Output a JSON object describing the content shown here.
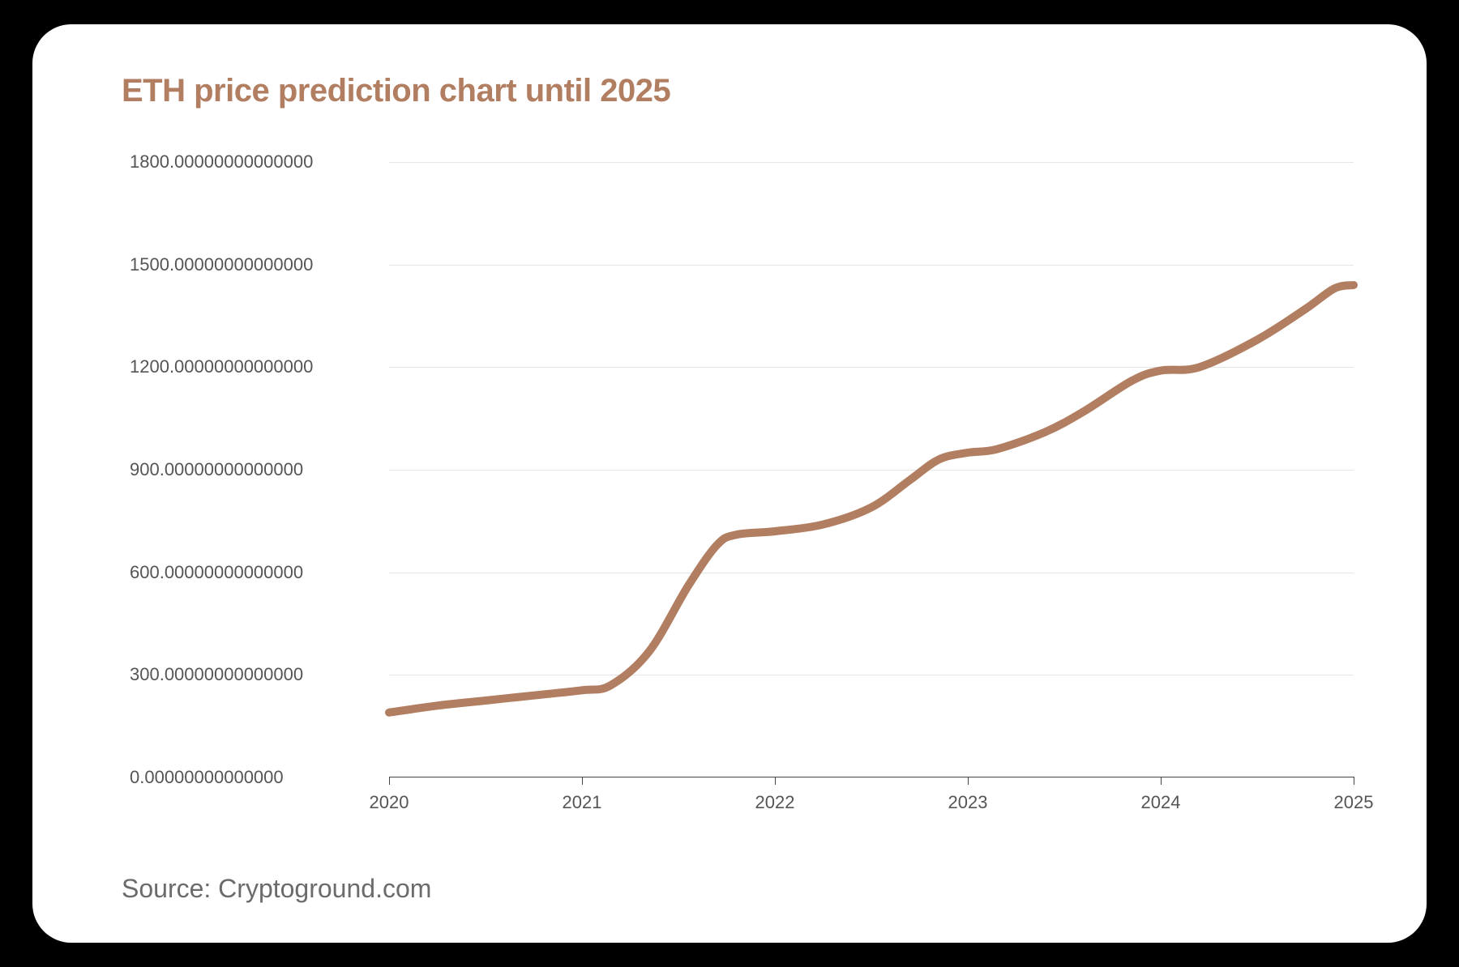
{
  "title": "ETH price prediction chart until 2025",
  "source": "Source: Cryptoground.com",
  "chart": {
    "type": "line",
    "title_color": "#b27e61",
    "title_fontsize": 40,
    "title_fontweight": 700,
    "source_color": "#6b6b6b",
    "source_fontsize": 32,
    "background_color": "#ffffff",
    "card_border_radius": 48,
    "page_background": "#000000",
    "grid_color": "#e5e5e5",
    "axis_color": "#444444",
    "tick_label_color": "#555555",
    "tick_label_fontsize": 22,
    "line_color": "#b27e61",
    "line_width": 10,
    "xlim": [
      2020,
      2025
    ],
    "ylim": [
      0,
      1800
    ],
    "x_ticks": [
      2020,
      2021,
      2022,
      2023,
      2024,
      2025
    ],
    "x_tick_labels": [
      "2020",
      "2021",
      "2022",
      "2023",
      "2024",
      "2025"
    ],
    "y_ticks": [
      0,
      300,
      600,
      900,
      1200,
      1500,
      1800
    ],
    "y_tick_labels": [
      "0.00000000000000",
      "300.00000000000000",
      "600.00000000000000",
      "900.00000000000000",
      "1200.00000000000000",
      "1500.00000000000000",
      "1800.00000000000000"
    ],
    "series": {
      "x": [
        2020,
        2020.25,
        2020.5,
        2020.75,
        2021,
        2021.15,
        2021.35,
        2021.55,
        2021.7,
        2021.8,
        2022,
        2022.25,
        2022.5,
        2022.7,
        2022.85,
        2023,
        2023.15,
        2023.4,
        2023.6,
        2023.85,
        2024,
        2024.2,
        2024.5,
        2024.75,
        2024.9,
        2025
      ],
      "y": [
        190,
        210,
        225,
        240,
        255,
        270,
        370,
        560,
        680,
        710,
        720,
        740,
        790,
        870,
        930,
        950,
        960,
        1010,
        1070,
        1160,
        1190,
        1200,
        1280,
        1370,
        1430,
        1440
      ]
    }
  }
}
